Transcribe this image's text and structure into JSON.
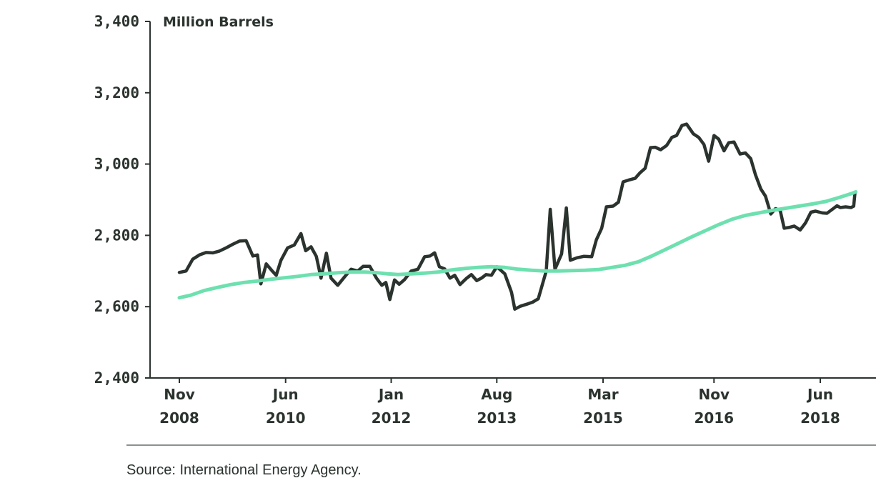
{
  "colors": {
    "text": "#2b332e",
    "axis": "#2b332e",
    "stock": "#2b332e",
    "trend": "#6ee0b0",
    "rule": "#8c918e"
  },
  "source_note": "Source: International Energy Agency.",
  "chart_data": {
    "type": "line",
    "unit_label": "Million Barrels",
    "ylim": [
      2400,
      3400
    ],
    "y_ticks": [
      {
        "value": 2400,
        "label": "2,400"
      },
      {
        "value": 2600,
        "label": "2,600"
      },
      {
        "value": 2800,
        "label": "2,800"
      },
      {
        "value": 3000,
        "label": "3,000"
      },
      {
        "value": 3200,
        "label": "3,200"
      },
      {
        "value": 3400,
        "label": "3,400"
      }
    ],
    "xlim": [
      2008.83,
      2018.75
    ],
    "x_ticks": [
      {
        "value": 2008.83,
        "month": "Nov",
        "year": "2008"
      },
      {
        "value": 2010.42,
        "month": "Jun",
        "year": "2010"
      },
      {
        "value": 2012.0,
        "month": "Jan",
        "year": "2012"
      },
      {
        "value": 2013.58,
        "month": "Aug",
        "year": "2013"
      },
      {
        "value": 2015.17,
        "month": "Mar",
        "year": "2015"
      },
      {
        "value": 2016.83,
        "month": "Nov",
        "year": "2016"
      },
      {
        "value": 2018.42,
        "month": "Jun",
        "year": "2018"
      }
    ],
    "grid": false,
    "legend": "none",
    "series": [
      {
        "role": "stocks",
        "color": "#2b332e",
        "points": [
          [
            2008.83,
            2696
          ],
          [
            2008.93,
            2700
          ],
          [
            2009.03,
            2733
          ],
          [
            2009.13,
            2745
          ],
          [
            2009.23,
            2752
          ],
          [
            2009.33,
            2751
          ],
          [
            2009.43,
            2756
          ],
          [
            2009.53,
            2765
          ],
          [
            2009.63,
            2775
          ],
          [
            2009.73,
            2784
          ],
          [
            2009.83,
            2785
          ],
          [
            2009.93,
            2742
          ],
          [
            2010.0,
            2745
          ],
          [
            2010.05,
            2664
          ],
          [
            2010.13,
            2720
          ],
          [
            2010.22,
            2700
          ],
          [
            2010.28,
            2688
          ],
          [
            2010.35,
            2730
          ],
          [
            2010.45,
            2765
          ],
          [
            2010.55,
            2773
          ],
          [
            2010.65,
            2805
          ],
          [
            2010.72,
            2757
          ],
          [
            2010.8,
            2768
          ],
          [
            2010.88,
            2741
          ],
          [
            2010.95,
            2680
          ],
          [
            2011.03,
            2750
          ],
          [
            2011.1,
            2680
          ],
          [
            2011.2,
            2660
          ],
          [
            2011.3,
            2683
          ],
          [
            2011.4,
            2705
          ],
          [
            2011.5,
            2700
          ],
          [
            2011.58,
            2713
          ],
          [
            2011.68,
            2713
          ],
          [
            2011.78,
            2680
          ],
          [
            2011.86,
            2660
          ],
          [
            2011.92,
            2668
          ],
          [
            2011.98,
            2620
          ],
          [
            2012.05,
            2675
          ],
          [
            2012.12,
            2663
          ],
          [
            2012.2,
            2676
          ],
          [
            2012.3,
            2700
          ],
          [
            2012.4,
            2705
          ],
          [
            2012.5,
            2740
          ],
          [
            2012.58,
            2742
          ],
          [
            2012.65,
            2751
          ],
          [
            2012.72,
            2712
          ],
          [
            2012.8,
            2706
          ],
          [
            2012.88,
            2680
          ],
          [
            2012.95,
            2688
          ],
          [
            2013.03,
            2662
          ],
          [
            2013.13,
            2680
          ],
          [
            2013.2,
            2690
          ],
          [
            2013.28,
            2673
          ],
          [
            2013.35,
            2680
          ],
          [
            2013.42,
            2690
          ],
          [
            2013.5,
            2688
          ],
          [
            2013.58,
            2712
          ],
          [
            2013.7,
            2692
          ],
          [
            2013.8,
            2640
          ],
          [
            2013.85,
            2593
          ],
          [
            2013.93,
            2601
          ],
          [
            2014.03,
            2607
          ],
          [
            2014.12,
            2613
          ],
          [
            2014.2,
            2622
          ],
          [
            2014.32,
            2700
          ],
          [
            2014.38,
            2873
          ],
          [
            2014.45,
            2705
          ],
          [
            2014.55,
            2748
          ],
          [
            2014.62,
            2877
          ],
          [
            2014.68,
            2730
          ],
          [
            2014.78,
            2737
          ],
          [
            2014.88,
            2741
          ],
          [
            2015.0,
            2740
          ],
          [
            2015.07,
            2788
          ],
          [
            2015.15,
            2820
          ],
          [
            2015.22,
            2880
          ],
          [
            2015.32,
            2882
          ],
          [
            2015.4,
            2893
          ],
          [
            2015.47,
            2950
          ],
          [
            2015.55,
            2955
          ],
          [
            2015.65,
            2960
          ],
          [
            2015.72,
            2975
          ],
          [
            2015.8,
            2988
          ],
          [
            2015.88,
            3046
          ],
          [
            2015.95,
            3047
          ],
          [
            2016.03,
            3040
          ],
          [
            2016.12,
            3052
          ],
          [
            2016.2,
            3075
          ],
          [
            2016.27,
            3080
          ],
          [
            2016.35,
            3108
          ],
          [
            2016.42,
            3112
          ],
          [
            2016.52,
            3085
          ],
          [
            2016.6,
            3075
          ],
          [
            2016.68,
            3055
          ],
          [
            2016.75,
            3008
          ],
          [
            2016.83,
            3080
          ],
          [
            2016.9,
            3070
          ],
          [
            2016.98,
            3037
          ],
          [
            2017.05,
            3060
          ],
          [
            2017.13,
            3062
          ],
          [
            2017.22,
            3028
          ],
          [
            2017.3,
            3031
          ],
          [
            2017.38,
            3015
          ],
          [
            2017.45,
            2970
          ],
          [
            2017.53,
            2930
          ],
          [
            2017.6,
            2910
          ],
          [
            2017.68,
            2860
          ],
          [
            2017.75,
            2875
          ],
          [
            2017.82,
            2870
          ],
          [
            2017.88,
            2820
          ],
          [
            2017.95,
            2822
          ],
          [
            2018.03,
            2826
          ],
          [
            2018.12,
            2815
          ],
          [
            2018.2,
            2835
          ],
          [
            2018.28,
            2865
          ],
          [
            2018.35,
            2868
          ],
          [
            2018.45,
            2863
          ],
          [
            2018.52,
            2862
          ],
          [
            2018.6,
            2873
          ],
          [
            2018.67,
            2883
          ],
          [
            2018.72,
            2878
          ],
          [
            2018.8,
            2880
          ],
          [
            2018.88,
            2878
          ],
          [
            2018.92,
            2882
          ],
          [
            2018.94,
            2920
          ]
        ]
      },
      {
        "role": "average",
        "color": "#6ee0b0",
        "points": [
          [
            2008.83,
            2625
          ],
          [
            2009.0,
            2632
          ],
          [
            2009.2,
            2645
          ],
          [
            2009.4,
            2654
          ],
          [
            2009.6,
            2662
          ],
          [
            2009.8,
            2668
          ],
          [
            2010.0,
            2672
          ],
          [
            2010.2,
            2677
          ],
          [
            2010.4,
            2681
          ],
          [
            2010.6,
            2685
          ],
          [
            2010.8,
            2690
          ],
          [
            2011.0,
            2692
          ],
          [
            2011.2,
            2695
          ],
          [
            2011.4,
            2697
          ],
          [
            2011.6,
            2697
          ],
          [
            2011.8,
            2695
          ],
          [
            2011.95,
            2692
          ],
          [
            2012.1,
            2690
          ],
          [
            2012.3,
            2692
          ],
          [
            2012.5,
            2694
          ],
          [
            2012.7,
            2697
          ],
          [
            2012.9,
            2703
          ],
          [
            2013.1,
            2707
          ],
          [
            2013.3,
            2710
          ],
          [
            2013.5,
            2712
          ],
          [
            2013.7,
            2710
          ],
          [
            2013.9,
            2705
          ],
          [
            2014.1,
            2702
          ],
          [
            2014.3,
            2700
          ],
          [
            2014.5,
            2700
          ],
          [
            2014.7,
            2701
          ],
          [
            2014.9,
            2702
          ],
          [
            2015.1,
            2704
          ],
          [
            2015.3,
            2710
          ],
          [
            2015.5,
            2716
          ],
          [
            2015.7,
            2726
          ],
          [
            2015.9,
            2742
          ],
          [
            2016.1,
            2760
          ],
          [
            2016.3,
            2778
          ],
          [
            2016.5,
            2796
          ],
          [
            2016.7,
            2813
          ],
          [
            2016.9,
            2830
          ],
          [
            2017.1,
            2845
          ],
          [
            2017.3,
            2856
          ],
          [
            2017.5,
            2863
          ],
          [
            2017.7,
            2870
          ],
          [
            2017.9,
            2876
          ],
          [
            2018.1,
            2882
          ],
          [
            2018.3,
            2888
          ],
          [
            2018.5,
            2895
          ],
          [
            2018.7,
            2906
          ],
          [
            2018.9,
            2918
          ],
          [
            2018.95,
            2922
          ]
        ]
      }
    ]
  }
}
